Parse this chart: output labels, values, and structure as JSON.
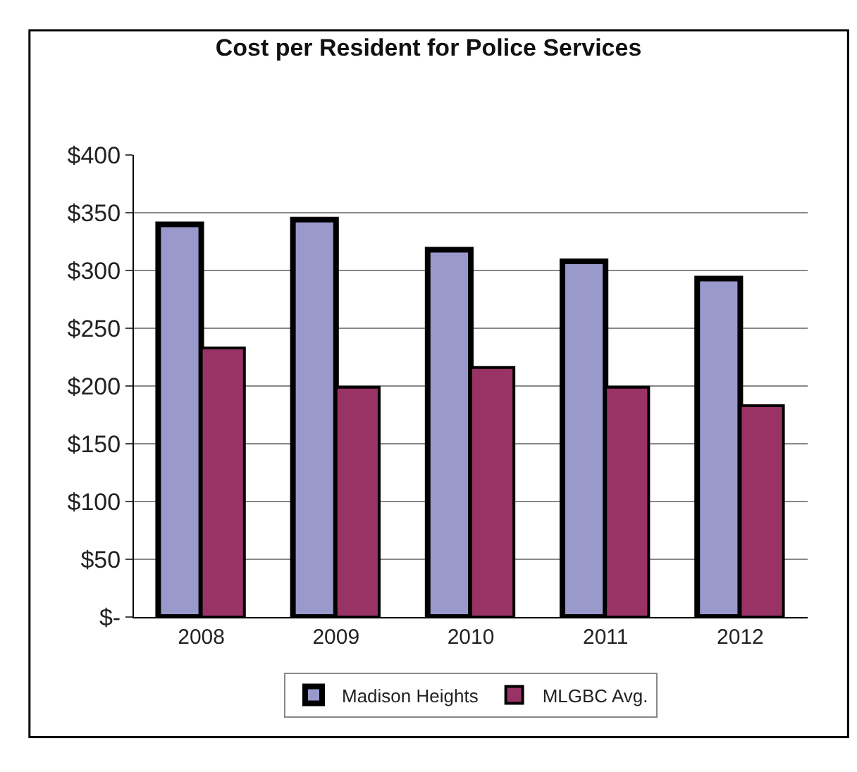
{
  "chart_data": {
    "type": "bar",
    "title": "Cost per Resident for Police Services",
    "categories": [
      "2008",
      "2009",
      "2010",
      "2011",
      "2012"
    ],
    "series": [
      {
        "name": "Madison Heights",
        "color": "#9999cc",
        "values": [
          340,
          344,
          318,
          308,
          293
        ]
      },
      {
        "name": "MLGBC Avg.",
        "color": "#993366",
        "values": [
          233,
          199,
          216,
          199,
          183
        ]
      }
    ],
    "ylim": [
      0,
      400
    ],
    "yticks": [
      {
        "value": 0,
        "label": "$-"
      },
      {
        "value": 50,
        "label": "$50"
      },
      {
        "value": 100,
        "label": "$100"
      },
      {
        "value": 150,
        "label": "$150"
      },
      {
        "value": 200,
        "label": "$200"
      },
      {
        "value": 250,
        "label": "$250"
      },
      {
        "value": 300,
        "label": "$300"
      },
      {
        "value": 350,
        "label": "$350"
      },
      {
        "value": 400,
        "label": "$400"
      }
    ],
    "grid": "y",
    "legend": "bottom"
  }
}
